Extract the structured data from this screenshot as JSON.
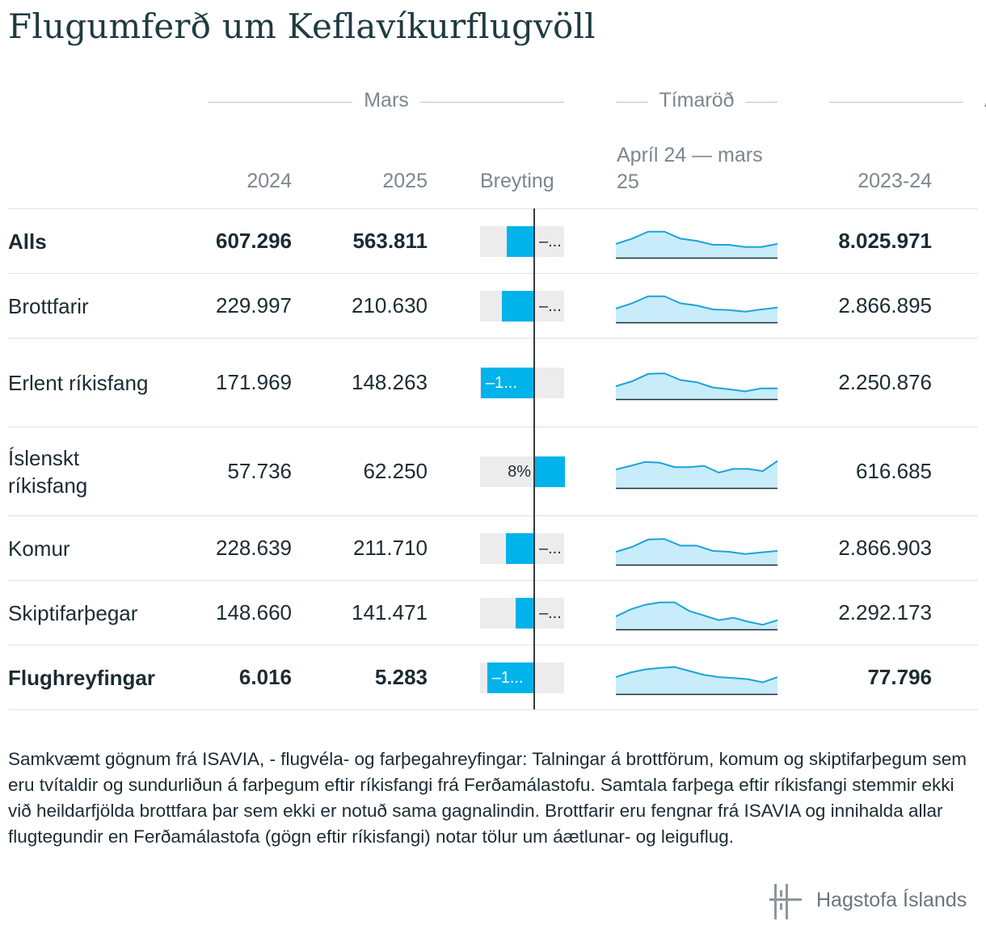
{
  "title": "Flugumferð um Keflavíkurflugvöll",
  "group_headers": [
    "Mars",
    "Tímaröð",
    "A"
  ],
  "column_headers": {
    "y2024": "2024",
    "y2025": "2025",
    "change": "Breyting",
    "series_line1": "Apríl 24 — mars",
    "series_line2": "25",
    "y2023_24": "2023-24"
  },
  "chart_data": {
    "type": "table",
    "rows": [
      {
        "label": "Alls",
        "bold": true,
        "v2024": "607.296",
        "v2025": "563.811",
        "change_pct": -7.2,
        "change_label": "–...",
        "total_2023_24": "8.025.971",
        "spark": [
          0.45,
          0.62,
          0.85,
          0.85,
          0.62,
          0.55,
          0.42,
          0.42,
          0.35,
          0.35,
          0.45
        ]
      },
      {
        "label": "Brottfarir",
        "bold": false,
        "v2024": "229.997",
        "v2025": "210.630",
        "change_pct": -8.4,
        "change_label": "–...",
        "total_2023_24": "2.866.895",
        "spark": [
          0.45,
          0.62,
          0.85,
          0.85,
          0.62,
          0.55,
          0.42,
          0.4,
          0.35,
          0.42,
          0.48
        ]
      },
      {
        "label": "Erlent ríkisfang",
        "bold": false,
        "v2024": "171.969",
        "v2025": "148.263",
        "change_pct": -13.8,
        "change_label": "–1...",
        "total_2023_24": "2.250.876",
        "spark": [
          0.42,
          0.58,
          0.82,
          0.84,
          0.62,
          0.55,
          0.38,
          0.32,
          0.25,
          0.35,
          0.35
        ]
      },
      {
        "label": "Íslenskt ríkisfang",
        "bold": false,
        "v2024": "57.736",
        "v2025": "62.250",
        "change_pct": 8,
        "change_label": "8%",
        "total_2023_24": "616.685",
        "spark": [
          0.6,
          0.72,
          0.85,
          0.82,
          0.68,
          0.68,
          0.72,
          0.5,
          0.62,
          0.62,
          0.55,
          0.88
        ]
      },
      {
        "label": "Komur",
        "bold": false,
        "v2024": "228.639",
        "v2025": "211.710",
        "change_pct": -7.4,
        "change_label": "–...",
        "total_2023_24": "2.866.903",
        "spark": [
          0.42,
          0.58,
          0.82,
          0.84,
          0.62,
          0.62,
          0.45,
          0.42,
          0.35,
          0.4,
          0.45
        ]
      },
      {
        "label": "Skiptifarþegar",
        "bold": false,
        "v2024": "148.660",
        "v2025": "141.471",
        "change_pct": -4.8,
        "change_label": "–...",
        "total_2023_24": "2.292.173",
        "spark": [
          0.42,
          0.65,
          0.8,
          0.88,
          0.88,
          0.6,
          0.45,
          0.3,
          0.38,
          0.25,
          0.15,
          0.3
        ]
      },
      {
        "label": "Flughreyfingar",
        "bold": true,
        "v2024": "6.016",
        "v2025": "5.283",
        "change_pct": -12.2,
        "change_label": "–1...",
        "total_2023_24": "77.796",
        "spark": [
          0.55,
          0.7,
          0.8,
          0.85,
          0.88,
          0.75,
          0.62,
          0.55,
          0.52,
          0.48,
          0.38,
          0.55
        ]
      }
    ]
  },
  "footnote": "Samkvæmt gögnum frá ISAVIA, - flugvéla- og farþegahreyfingar: Talningar á brottförum, komum og skiptifarþegum sem eru tvítaldir og sundurliðun á farþegum eftir ríkisfangi frá Ferðamálastofu. Samtala farþega eftir ríkisfangi stemmir ekki við heildarfjölda brottfara þar sem ekki er notuð sama gagnalindin. Brottfarir eru fengnar frá ISAVIA og innihalda allar flugtegundir en Ferðamálastofa (gögn eftir ríkisfangi) notar tölur um áætlunar- og leiguflug.",
  "logo_text": "Hagstofa Íslands",
  "colors": {
    "bar": "#00b3ea",
    "bar_bg": "#ececec",
    "spark_line": "#1ca3d9",
    "spark_fill": "#c8ecfa"
  }
}
